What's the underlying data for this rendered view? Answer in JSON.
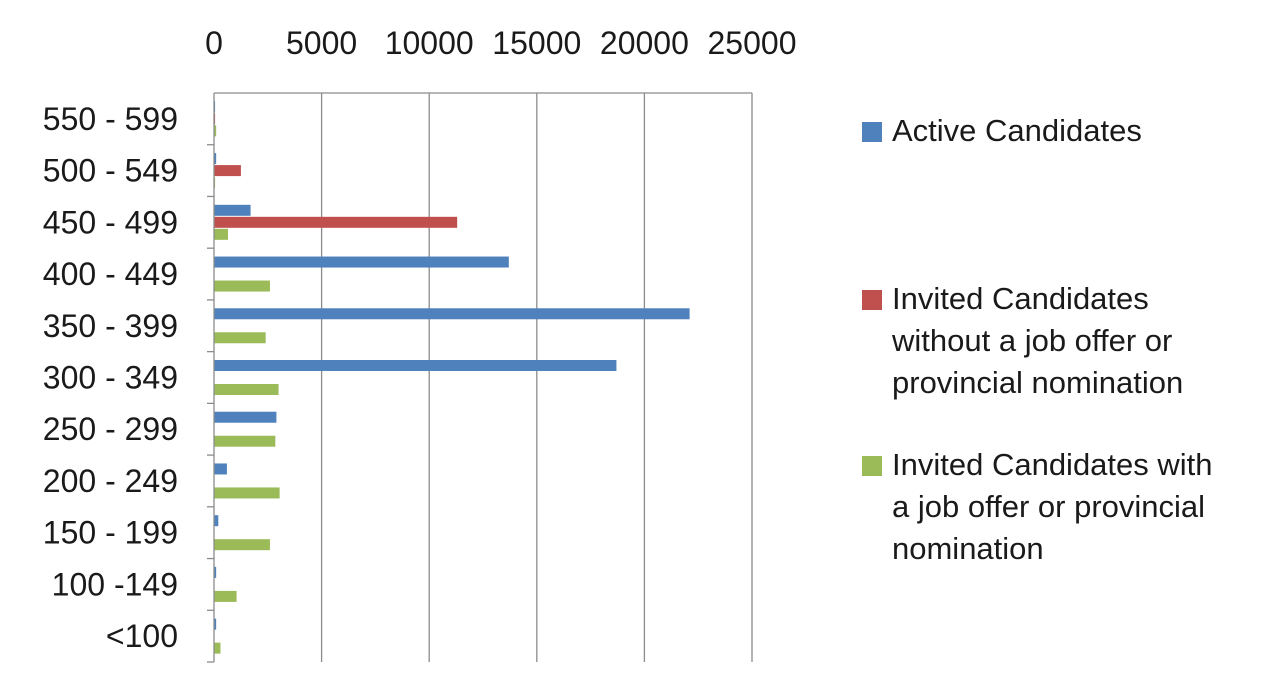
{
  "chart_data": {
    "type": "bar",
    "orientation": "horizontal",
    "categories": [
      "550 - 599",
      "500 - 549",
      "450 - 499",
      "400 - 449",
      "350 - 399",
      "300 - 349",
      "250 - 299",
      "200 - 249",
      "150 - 199",
      "100 -149",
      "<100"
    ],
    "series": [
      {
        "name": "Active Candidates",
        "color": "#4f81bd",
        "values": [
          50,
          100,
          1700,
          13700,
          22100,
          18700,
          2900,
          600,
          200,
          100,
          100
        ]
      },
      {
        "name": "Invited Candidates\nwithout a job offer or\nprovincial nomination",
        "color": "#c0504d",
        "values": [
          50,
          1250,
          11300,
          0,
          0,
          0,
          0,
          0,
          0,
          0,
          0
        ]
      },
      {
        "name": "Invited Candidates with\na job offer or provincial\nnomination",
        "color": "#9bbb59",
        "values": [
          100,
          50,
          650,
          2600,
          2400,
          3000,
          2850,
          3050,
          2600,
          1050,
          300
        ]
      }
    ],
    "xlim": [
      0,
      25000
    ],
    "xticks": [
      "0",
      "5000",
      "10000",
      "15000",
      "20000",
      "25000"
    ],
    "x_axis_position": "top",
    "grid": true,
    "legend_position": "right",
    "title": "",
    "xlabel": "",
    "ylabel": ""
  }
}
